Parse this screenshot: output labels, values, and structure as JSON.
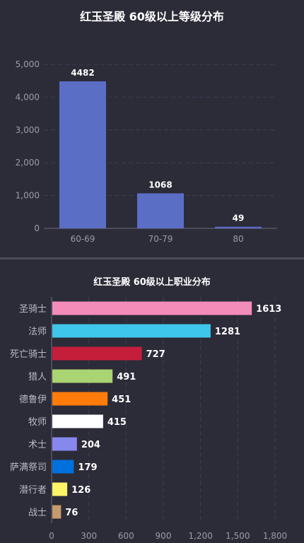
{
  "chart_data": [
    {
      "type": "bar",
      "title": "红玉圣殿 60级以上等级分布",
      "categories": [
        "60-69",
        "70-79",
        "80"
      ],
      "values": [
        4482,
        1068,
        49
      ],
      "ylim": [
        0,
        5000
      ],
      "yticks": [
        "0",
        "1,000",
        "2,000",
        "3,000",
        "4,000",
        "5,000"
      ],
      "grid": true,
      "bar_color": "#5b6ec6"
    },
    {
      "type": "bar",
      "orientation": "horizontal",
      "title": "红玉圣殿 60级以上职业分布",
      "categories": [
        "圣骑士",
        "法师",
        "死亡骑士",
        "猎人",
        "德鲁伊",
        "牧师",
        "术士",
        "萨满祭司",
        "潜行者",
        "战士"
      ],
      "values": [
        1613,
        1281,
        727,
        491,
        451,
        415,
        204,
        179,
        126,
        76
      ],
      "colors": [
        "#f48cba",
        "#3fc7eb",
        "#c41e3a",
        "#aad372",
        "#ff7c0a",
        "#ffffff",
        "#8788ee",
        "#0070dd",
        "#fff468",
        "#c69b6d"
      ],
      "xlim": [
        0,
        1800
      ],
      "xticks": [
        "0",
        "300",
        "600",
        "900",
        "1,200",
        "1,500",
        "1,800"
      ],
      "grid": true
    }
  ]
}
